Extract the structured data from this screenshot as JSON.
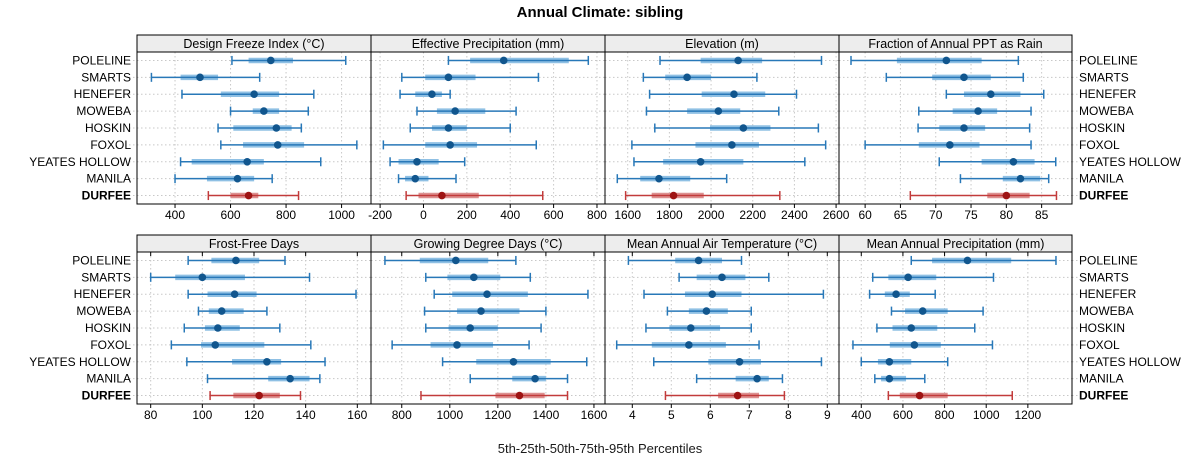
{
  "title": "Annual Climate: sibling",
  "caption": "5th-25th-50th-75th-95th Percentiles",
  "stations": [
    "POLELINE",
    "SMARTS",
    "HENEFER",
    "MOWEBA",
    "HOSKIN",
    "FOXOL",
    "YEATES HOLLOW",
    "MANILA",
    "DURFEE"
  ],
  "highlight_station": "DURFEE",
  "colors": {
    "background": "#ffffff",
    "panel_bg": "#ffffff",
    "strip_bg": "#ededed",
    "border": "#000000",
    "grid": "#c8c8c8",
    "tick": "#000000",
    "blue_line": "#2878b8",
    "blue_band": "#8fc0e4",
    "blue_dot": "#11568e",
    "red_line": "#c23b3b",
    "red_band": "#dd9090",
    "red_dot": "#9e1414"
  },
  "chart_data": [
    {
      "type": "dotplot-interval",
      "title": "Design Freeze Index (°C)",
      "row": 0,
      "col": 0,
      "xlim": [
        263,
        1106
      ],
      "xticks": [
        400,
        600,
        800,
        1000
      ],
      "percentile_labels": [
        "5th",
        "25th",
        "50th",
        "75th",
        "95th"
      ],
      "values": {
        "POLELINE": [
          605,
          665,
          745,
          825,
          1015
        ],
        "SMARTS": [
          315,
          420,
          490,
          555,
          705
        ],
        "HENEFER": [
          425,
          565,
          685,
          775,
          900
        ],
        "MOWEBA": [
          600,
          680,
          720,
          775,
          880
        ],
        "HOSKIN": [
          555,
          610,
          765,
          820,
          855
        ],
        "FOXOL": [
          565,
          645,
          770,
          865,
          1055
        ],
        "YEATES HOLLOW": [
          420,
          460,
          660,
          720,
          925
        ],
        "MANILA": [
          400,
          515,
          625,
          685,
          750
        ],
        "DURFEE": [
          520,
          600,
          665,
          700,
          845
        ]
      }
    },
    {
      "type": "dotplot-interval",
      "title": "Effective Precipitation (mm)",
      "row": 0,
      "col": 1,
      "xlim": [
        -242,
        837
      ],
      "xticks": [
        -200,
        0,
        200,
        400,
        600,
        800
      ],
      "percentile_labels": [
        "5th",
        "25th",
        "50th",
        "75th",
        "95th"
      ],
      "values": {
        "POLELINE": [
          115,
          215,
          370,
          670,
          760
        ],
        "SMARTS": [
          -100,
          8,
          115,
          240,
          530
        ],
        "HENEFER": [
          -108,
          -38,
          39,
          85,
          123
        ],
        "MOWEBA": [
          -30,
          62,
          146,
          285,
          427
        ],
        "HOSKIN": [
          -61,
          39,
          115,
          200,
          400
        ],
        "FOXOL": [
          -185,
          8,
          123,
          247,
          520
        ],
        "YEATES HOLLOW": [
          -154,
          -115,
          -30,
          70,
          190
        ],
        "MANILA": [
          -115,
          -85,
          -38,
          23,
          150
        ],
        "DURFEE": [
          -80,
          -23,
          85,
          255,
          550
        ]
      }
    },
    {
      "type": "dotplot-interval",
      "title": "Elevation (m)",
      "row": 0,
      "col": 2,
      "xlim": [
        1491,
        2614
      ],
      "xticks": [
        1600,
        1800,
        2000,
        2200,
        2400,
        2600
      ],
      "percentile_labels": [
        "5th",
        "25th",
        "50th",
        "75th",
        "95th"
      ],
      "values": {
        "POLELINE": [
          1755,
          1950,
          2130,
          2245,
          2530
        ],
        "SMARTS": [
          1675,
          1780,
          1885,
          2000,
          2220
        ],
        "HENEFER": [
          1705,
          1955,
          2110,
          2260,
          2410
        ],
        "MOWEBA": [
          1690,
          1885,
          2035,
          2140,
          2325
        ],
        "HOSKIN": [
          1730,
          1995,
          2155,
          2285,
          2515
        ],
        "FOXOL": [
          1620,
          1925,
          2100,
          2230,
          2550
        ],
        "YEATES HOLLOW": [
          1630,
          1770,
          1950,
          2155,
          2450
        ],
        "MANILA": [
          1550,
          1660,
          1750,
          1900,
          2075
        ],
        "DURFEE": [
          1590,
          1715,
          1820,
          1965,
          2330
        ]
      }
    },
    {
      "type": "dotplot-interval",
      "title": "Fraction of Annual PPT as Rain",
      "row": 0,
      "col": 3,
      "xlim": [
        56.3,
        89.3
      ],
      "xticks": [
        60,
        65,
        70,
        75,
        80,
        85
      ],
      "percentile_labels": [
        "5th",
        "25th",
        "50th",
        "75th",
        "95th"
      ],
      "values": {
        "POLELINE": [
          58,
          64.5,
          71.5,
          76.5,
          81.7
        ],
        "SMARTS": [
          63,
          69.5,
          74,
          77.8,
          82.4
        ],
        "HENEFER": [
          71.5,
          74,
          77.8,
          82,
          85.3
        ],
        "MOWEBA": [
          67.6,
          72.4,
          76,
          78.7,
          83.5
        ],
        "HOSKIN": [
          67.5,
          70.5,
          74,
          77,
          83.3
        ],
        "FOXOL": [
          60,
          67.6,
          72,
          76.2,
          83.5
        ],
        "YEATES HOLLOW": [
          70.5,
          76.5,
          81,
          84,
          87
        ],
        "MANILA": [
          73.5,
          79.5,
          82,
          84.8,
          86
        ],
        "DURFEE": [
          66.4,
          77.3,
          80,
          83.3,
          87.1
        ]
      }
    },
    {
      "type": "dotplot-interval",
      "title": "Frost-Free Days",
      "row": 1,
      "col": 0,
      "xlim": [
        74.7,
        165.3
      ],
      "xticks": [
        80,
        100,
        120,
        140,
        160
      ],
      "percentile_labels": [
        "5th",
        "25th",
        "50th",
        "75th",
        "95th"
      ],
      "values": {
        "POLELINE": [
          94.5,
          103.5,
          113,
          122,
          132
        ],
        "SMARTS": [
          80,
          89.5,
          100,
          116.5,
          141.5
        ],
        "HENEFER": [
          94.5,
          102,
          112.5,
          121,
          159.5
        ],
        "MOWEBA": [
          98.5,
          102.5,
          107.5,
          116,
          125
        ],
        "HOSKIN": [
          93,
          101,
          106,
          114.5,
          130
        ],
        "FOXOL": [
          88,
          99.5,
          105,
          124,
          142
        ],
        "YEATES HOLLOW": [
          94,
          111.5,
          125,
          130.5,
          147.5
        ],
        "MANILA": [
          102,
          125.5,
          134,
          141.5,
          145.5
        ],
        "DURFEE": [
          103,
          112,
          122,
          130,
          138
        ]
      }
    },
    {
      "type": "dotplot-interval",
      "title": "Growing Degree Days (°C)",
      "row": 1,
      "col": 1,
      "xlim": [
        672,
        1646
      ],
      "xticks": [
        800,
        1000,
        1200,
        1400,
        1600
      ],
      "percentile_labels": [
        "5th",
        "25th",
        "50th",
        "75th",
        "95th"
      ],
      "values": {
        "POLELINE": [
          730,
          875,
          1025,
          1160,
          1275
        ],
        "SMARTS": [
          900,
          990,
          1100,
          1210,
          1335
        ],
        "HENEFER": [
          935,
          1010,
          1155,
          1325,
          1575
        ],
        "MOWEBA": [
          895,
          1030,
          1130,
          1290,
          1400
        ],
        "HOSKIN": [
          900,
          995,
          1085,
          1200,
          1380
        ],
        "FOXOL": [
          760,
          920,
          1030,
          1180,
          1330
        ],
        "YEATES HOLLOW": [
          970,
          1110,
          1265,
          1420,
          1570
        ],
        "MANILA": [
          1085,
          1260,
          1355,
          1400,
          1490
        ],
        "DURFEE": [
          880,
          1190,
          1290,
          1395,
          1490
        ]
      }
    },
    {
      "type": "dotplot-interval",
      "title": "Mean Annual Air Temperature (°C)",
      "row": 1,
      "col": 2,
      "xlim": [
        3.3,
        9.3
      ],
      "xticks": [
        4,
        5,
        6,
        7,
        8,
        9
      ],
      "percentile_labels": [
        "5th",
        "25th",
        "50th",
        "75th",
        "95th"
      ],
      "values": {
        "POLELINE": [
          3.9,
          5.1,
          5.7,
          6.3,
          6.8
        ],
        "SMARTS": [
          5.2,
          5.65,
          6.3,
          6.9,
          7.5
        ],
        "HENEFER": [
          4.3,
          5.35,
          6.05,
          6.8,
          8.9
        ],
        "MOWEBA": [
          4.9,
          5.45,
          5.9,
          6.45,
          7.05
        ],
        "HOSKIN": [
          4.35,
          4.95,
          5.5,
          6.25,
          7.05
        ],
        "FOXOL": [
          3.6,
          4.5,
          5.45,
          6.4,
          7.25
        ],
        "YEATES HOLLOW": [
          4.55,
          5.95,
          6.75,
          7.3,
          8.85
        ],
        "MANILA": [
          5.65,
          6.65,
          7.2,
          7.5,
          7.85
        ],
        "DURFEE": [
          4.85,
          6.2,
          6.7,
          7.25,
          7.9
        ]
      }
    },
    {
      "type": "dotplot-interval",
      "title": "Mean Annual Precipitation (mm)",
      "row": 1,
      "col": 3,
      "xlim": [
        293,
        1412
      ],
      "xticks": [
        400,
        600,
        800,
        1000,
        1200
      ],
      "percentile_labels": [
        "5th",
        "25th",
        "50th",
        "75th",
        "95th"
      ],
      "values": {
        "POLELINE": [
          640,
          740,
          910,
          1120,
          1335
        ],
        "SMARTS": [
          455,
          530,
          625,
          760,
          1035
        ],
        "HENEFER": [
          440,
          513,
          567,
          633,
          755
        ],
        "MOWEBA": [
          545,
          610,
          695,
          815,
          985
        ],
        "HOSKIN": [
          475,
          550,
          640,
          765,
          945
        ],
        "FOXOL": [
          360,
          537,
          655,
          782,
          1030
        ],
        "YEATES HOLLOW": [
          400,
          480,
          535,
          640,
          815
        ],
        "MANILA": [
          465,
          495,
          535,
          615,
          705
        ],
        "DURFEE": [
          530,
          585,
          680,
          815,
          1125
        ]
      }
    }
  ]
}
